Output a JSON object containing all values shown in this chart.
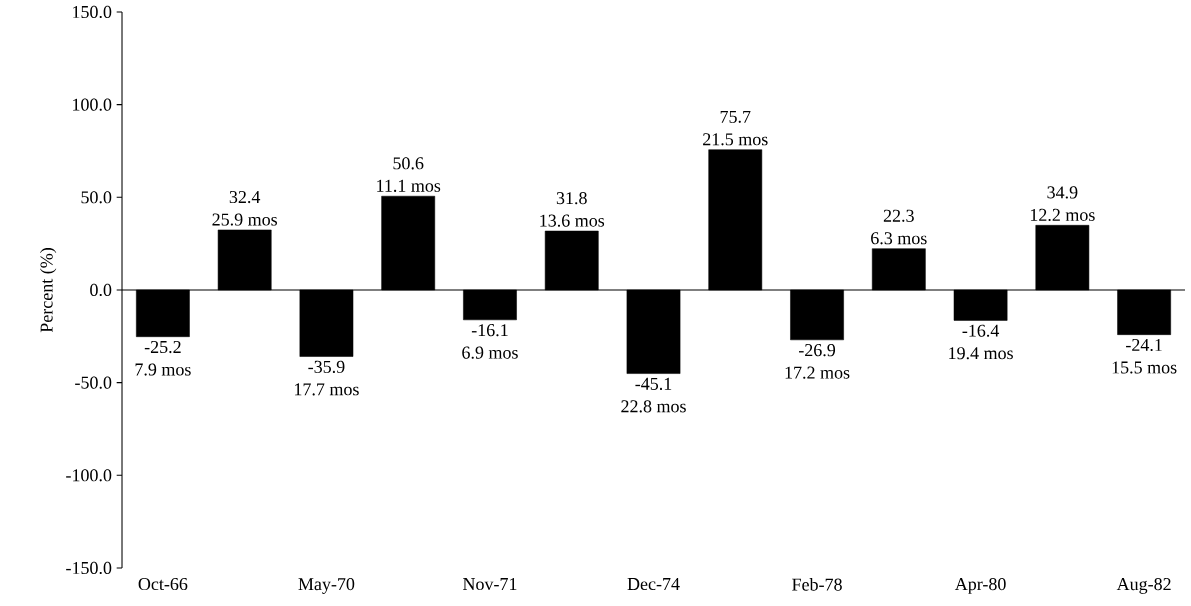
{
  "chart_data": {
    "type": "bar",
    "ylabel": "Percent (%)",
    "categories": [
      "Oct-66",
      null,
      "May-70",
      null,
      "Nov-71",
      null,
      "Dec-74",
      null,
      "Feb-78",
      null,
      "Apr-80",
      null,
      "Aug-82"
    ],
    "values": [
      -25.2,
      32.4,
      -35.9,
      50.6,
      -16.1,
      31.8,
      -45.1,
      75.7,
      -26.9,
      22.3,
      -16.4,
      34.9,
      -24.1
    ],
    "color": "#000000",
    "data_labels": true,
    "annotations": [
      "7.9 mos",
      "25.9 mos",
      "17.7 mos",
      "11.1 mos",
      "6.9 mos",
      "13.6 mos",
      "22.8 mos",
      "21.5 mos",
      "17.2 mos",
      "6.3 mos",
      "19.4 mos",
      "12.2 mos",
      "15.5 mos"
    ],
    "ylim": [
      -150,
      150
    ],
    "yticks": [
      {
        "value": -150,
        "label": "-150.0"
      },
      {
        "value": -100,
        "label": "-100.0"
      },
      {
        "value": -50,
        "label": "-50.0"
      },
      {
        "value": 0,
        "label": "0.0"
      },
      {
        "value": 50,
        "label": "50.0"
      },
      {
        "value": 100,
        "label": "100.0"
      },
      {
        "value": 150,
        "label": "150.0"
      }
    ]
  }
}
